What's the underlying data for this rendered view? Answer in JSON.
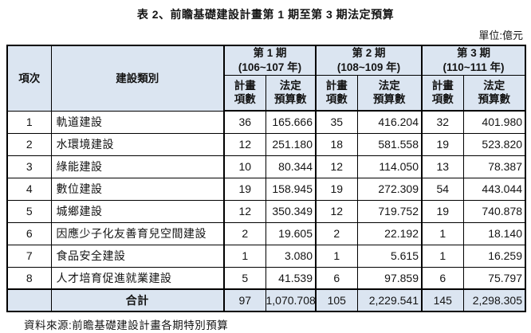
{
  "title": "表 2、前瞻基礎建設計畫第 1 期至第 3 期法定預算",
  "unit_label": "單位:億元",
  "source_note": "資料來源:前瞻基礎建設計畫各期特別預算",
  "colors": {
    "header_fill": "#dbe5f1",
    "border": "#000000",
    "text": "#141414"
  },
  "table": {
    "corner_headers": {
      "item_no": "項次",
      "category": "建設類別"
    },
    "periods": [
      {
        "name": "第 1 期",
        "years": "(106~107 年)"
      },
      {
        "name": "第 2 期",
        "years": "(108~109 年)"
      },
      {
        "name": "第 3 期",
        "years": "(110~111 年)"
      }
    ],
    "subheaders": {
      "count_line1": "計畫",
      "count_line2": "項數",
      "budget_line1": "法定",
      "budget_line2": "預算數"
    },
    "rows": [
      {
        "no": "1",
        "category": "軌道建設",
        "p1_count": "36",
        "p1_budget": "165.666",
        "p2_count": "35",
        "p2_budget": "416.204",
        "p3_count": "32",
        "p3_budget": "401.980"
      },
      {
        "no": "2",
        "category": "水環境建設",
        "p1_count": "12",
        "p1_budget": "251.180",
        "p2_count": "18",
        "p2_budget": "581.558",
        "p3_count": "19",
        "p3_budget": "523.820"
      },
      {
        "no": "3",
        "category": "綠能建設",
        "p1_count": "10",
        "p1_budget": "80.344",
        "p2_count": "12",
        "p2_budget": "114.050",
        "p3_count": "13",
        "p3_budget": "78.387"
      },
      {
        "no": "4",
        "category": "數位建設",
        "p1_count": "19",
        "p1_budget": "158.945",
        "p2_count": "19",
        "p2_budget": "272.309",
        "p3_count": "54",
        "p3_budget": "443.044"
      },
      {
        "no": "5",
        "category": "城鄉建設",
        "p1_count": "12",
        "p1_budget": "350.349",
        "p2_count": "12",
        "p2_budget": "719.752",
        "p3_count": "19",
        "p3_budget": "740.878"
      },
      {
        "no": "6",
        "category": "因應少子化友善育兒空間建設",
        "p1_count": "2",
        "p1_budget": "19.605",
        "p2_count": "2",
        "p2_budget": "22.192",
        "p3_count": "1",
        "p3_budget": "18.140"
      },
      {
        "no": "7",
        "category": "食品安全建設",
        "p1_count": "1",
        "p1_budget": "3.080",
        "p2_count": "1",
        "p2_budget": "5.615",
        "p3_count": "1",
        "p3_budget": "16.259"
      },
      {
        "no": "8",
        "category": "人才培育促進就業建設",
        "p1_count": "5",
        "p1_budget": "41.539",
        "p2_count": "6",
        "p2_budget": "97.859",
        "p3_count": "6",
        "p3_budget": "75.797"
      }
    ],
    "total": {
      "label": "合計",
      "p1_count": "97",
      "p1_budget": "1,070.708",
      "p2_count": "105",
      "p2_budget": "2,229.541",
      "p3_count": "145",
      "p3_budget": "2,298.305"
    }
  }
}
